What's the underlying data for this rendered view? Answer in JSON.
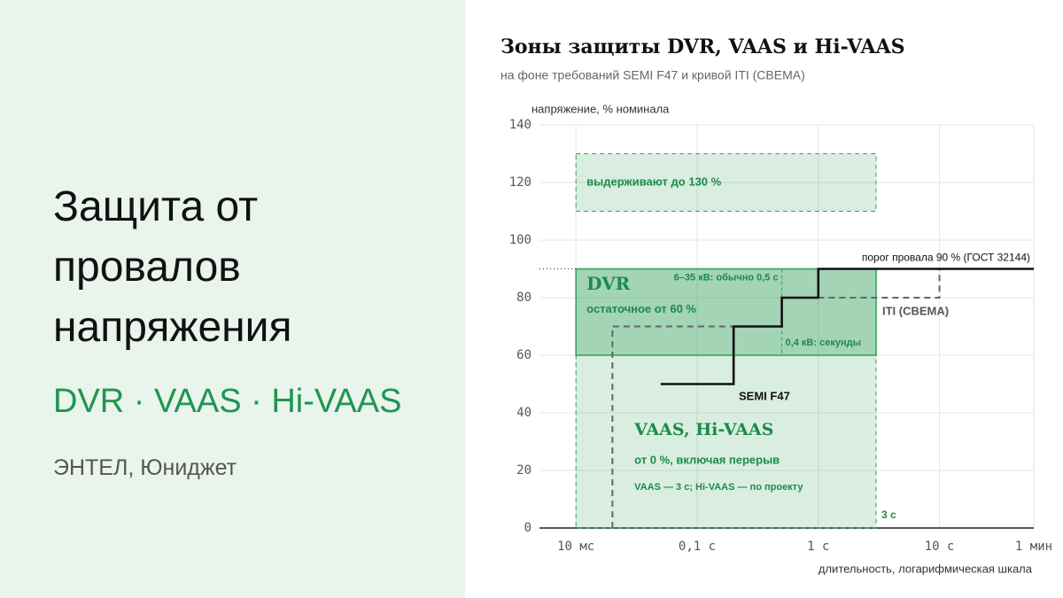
{
  "slide": {
    "title": "Защита от провалов напряжения",
    "subtitle": "DVR · VAAS · Hi-VAAS",
    "source": "ЭНТЕЛ, Юниджет"
  },
  "chart_data": {
    "type": "step-zones",
    "title": "Зоны защиты DVR, VAAS и Hi-VAAS",
    "subtitle": "на фоне требований SEMI F47 и кривой ITI (CBEMA)",
    "y_label": "напряжение, % номинала",
    "x_label": "длительность, логарифмическая шкала",
    "x_scale": "log",
    "xlim": [
      0.005,
      60
    ],
    "xticks": [
      {
        "value": 0.01,
        "label": "10 мс"
      },
      {
        "value": 0.1,
        "label": "0,1 с"
      },
      {
        "value": 1,
        "label": "1 с"
      },
      {
        "value": 10,
        "label": "10 с"
      },
      {
        "value": 60,
        "label": "1 мин"
      }
    ],
    "ylim": [
      0,
      140
    ],
    "yticks": [
      0,
      20,
      40,
      60,
      80,
      100,
      120,
      140
    ],
    "grid": true,
    "zones": [
      {
        "name": "выдерживают до 130 %",
        "x": [
          0.01,
          3
        ],
        "y": [
          110,
          130
        ],
        "color": "#2e9e5b",
        "style": "dashed"
      },
      {
        "name": "VAAS, Hi-VAAS",
        "note": "от 0 %, включая перерыв",
        "detail": "VAAS — 3 с; Hi-VAAS — по проекту",
        "end_label": "3 с",
        "x": [
          0.01,
          3
        ],
        "y": [
          0,
          90
        ],
        "color": "#2e9e5b",
        "style": "dashed"
      },
      {
        "name": "DVR",
        "note": "остаточное от 60 %",
        "x": [
          0.01,
          3
        ],
        "y": [
          60,
          90
        ],
        "color": "#2e9e5b",
        "style": "solid",
        "divider": {
          "x": 0.5,
          "left_label": "6–35 кВ: обычно 0,5 с",
          "right_label": "0,4 кВ: секунды"
        }
      }
    ],
    "threshold": {
      "label": "порог провала 90 % (ГОСТ 32144)",
      "value": 90
    },
    "series": [
      {
        "name": "ITI (CBEMA)",
        "color": "#666666",
        "style": "dashed",
        "x": [
          0.02,
          0.02,
          0.5,
          0.5,
          10,
          10,
          60
        ],
        "values": [
          0,
          70,
          70,
          80,
          80,
          90,
          90
        ]
      },
      {
        "name": "SEMI F47",
        "color": "#111111",
        "style": "solid",
        "x": [
          0.05,
          0.2,
          0.2,
          0.5,
          0.5,
          1,
          1,
          60
        ],
        "values": [
          50,
          50,
          70,
          70,
          80,
          80,
          90,
          90
        ]
      }
    ]
  }
}
